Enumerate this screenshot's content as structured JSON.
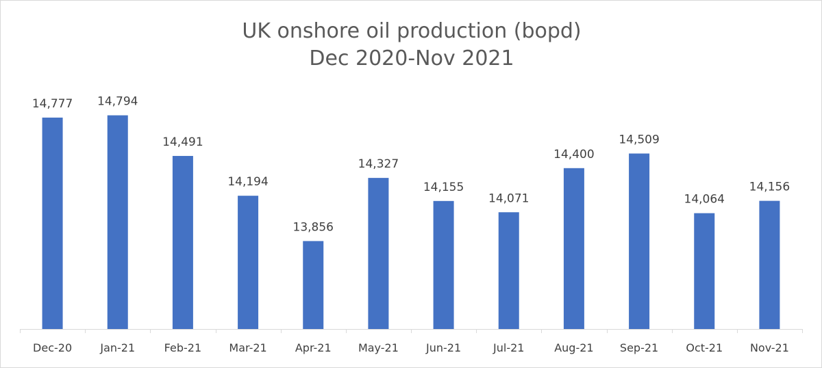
{
  "chart_data": {
    "type": "bar",
    "title": "UK onshore oil production (bopd)",
    "subtitle": "Dec 2020-Nov 2021",
    "xlabel": "",
    "ylabel": "",
    "categories": [
      "Dec-20",
      "Jan-21",
      "Feb-21",
      "Mar-21",
      "Apr-21",
      "May-21",
      "Jun-21",
      "Jul-21",
      "Aug-21",
      "Sep-21",
      "Oct-21",
      "Nov-21"
    ],
    "values": [
      14777,
      14794,
      14491,
      14194,
      13856,
      14327,
      14155,
      14071,
      14400,
      14509,
      14064,
      14156
    ],
    "data_labels": [
      "14,777",
      "14,794",
      "14,491",
      "14,194",
      "13,856",
      "14,327",
      "14,155",
      "14,071",
      "14,400",
      "14,509",
      "14,064",
      "14,156"
    ],
    "ylim": [
      13200,
      14950
    ],
    "grid": false,
    "legend": "none",
    "bar_color": "#4472c4"
  }
}
